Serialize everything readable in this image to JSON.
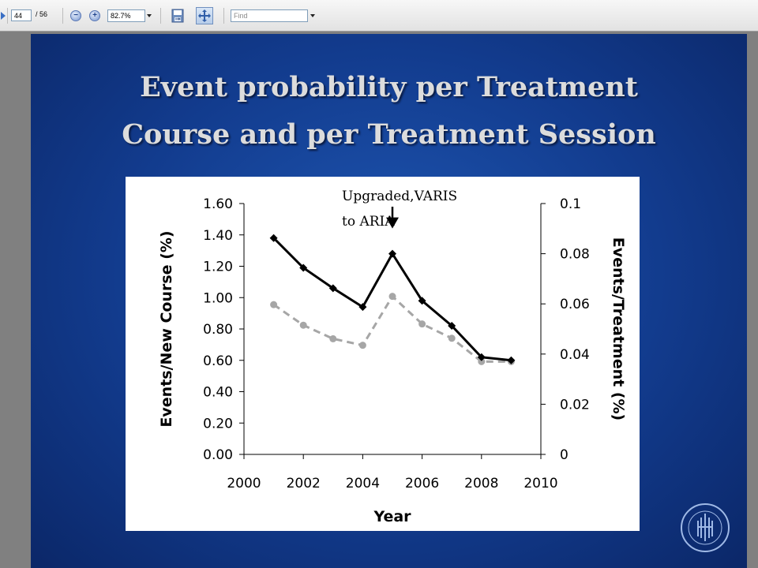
{
  "toolbar": {
    "page_current": "44",
    "page_total": "/ 56",
    "zoom_level": "82.7%",
    "find_placeholder": "Find",
    "icons": [
      "play-icon",
      "zoom-out-icon",
      "zoom-in-icon",
      "save-icon",
      "fit-page-icon"
    ]
  },
  "slide": {
    "title_line1": "Event probability per Treatment",
    "title_line2": "Course and per Treatment Session"
  },
  "colors": {
    "slide_background": "#123b8d",
    "title_text": "#dcdcdc",
    "series_course": "#000000",
    "series_treatment": "#a6a6a6"
  },
  "chart_data": {
    "type": "line",
    "title": "",
    "xlabel": "Year",
    "ylabel": "Events/New Course (%)",
    "y2label": "Events/Treatment (%)",
    "xlim": [
      2000,
      2010
    ],
    "ylim": [
      0,
      1.6
    ],
    "y2lim": [
      0,
      0.1
    ],
    "x_ticks": [
      "2000",
      "2002",
      "2004",
      "2006",
      "2008",
      "2010"
    ],
    "y_ticks": [
      "1.60",
      "1.40",
      "1.20",
      "1.00",
      "0.80",
      "0.60",
      "0.40",
      "0.20",
      "0.00"
    ],
    "y2_ticks": [
      "0.1",
      "0.08",
      "0.06",
      "0.04",
      "0.02",
      "0"
    ],
    "grid": false,
    "legend": "none",
    "series": [
      {
        "axis": "left",
        "style": "solid-diamond",
        "x": [
          2001,
          2002,
          2003,
          2004,
          2005,
          2006,
          2007,
          2008,
          2009
        ],
        "values": [
          1.38,
          1.19,
          1.06,
          0.94,
          1.28,
          0.98,
          0.82,
          0.62,
          0.6
        ]
      },
      {
        "axis": "right",
        "style": "dashed-circle",
        "x": [
          2001,
          2002,
          2003,
          2004,
          2005,
          2006,
          2007,
          2008,
          2009
        ],
        "values": [
          0.0597,
          0.0515,
          0.0461,
          0.0435,
          0.063,
          0.052,
          0.0463,
          0.037,
          0.037
        ]
      }
    ],
    "annotations": [
      {
        "line1": "Upgraded,VARIS",
        "line2": "to ARIA",
        "x": 2005,
        "y": 1.28
      }
    ]
  }
}
